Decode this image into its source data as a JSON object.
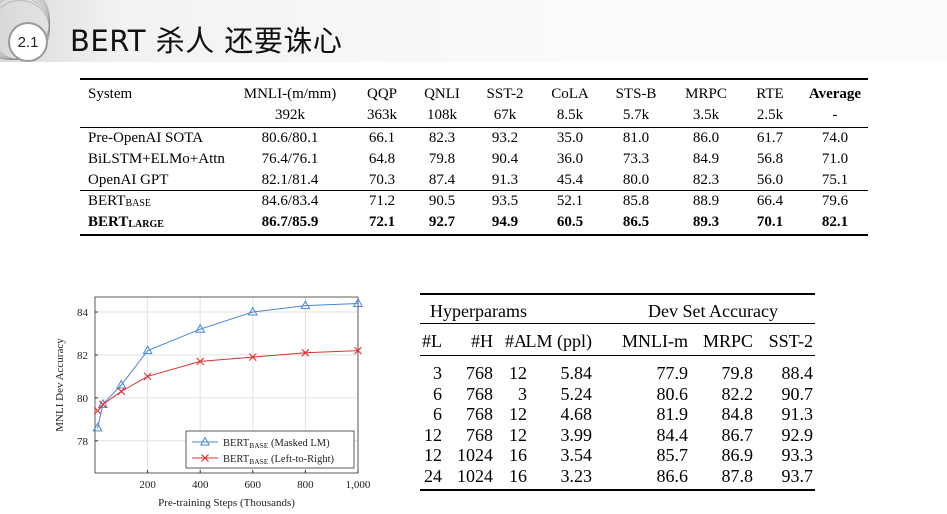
{
  "header": {
    "section_number": "2.1",
    "title": "BERT 杀人 还要诛心"
  },
  "glue_table": {
    "headers": [
      {
        "top": "System",
        "bottom": ""
      },
      {
        "top": "MNLI-(m/mm)",
        "bottom": "392k"
      },
      {
        "top": "QQP",
        "bottom": "363k"
      },
      {
        "top": "QNLI",
        "bottom": "108k"
      },
      {
        "top": "SST-2",
        "bottom": "67k"
      },
      {
        "top": "CoLA",
        "bottom": "8.5k"
      },
      {
        "top": "STS-B",
        "bottom": "5.7k"
      },
      {
        "top": "MRPC",
        "bottom": "3.5k"
      },
      {
        "top": "RTE",
        "bottom": "2.5k"
      },
      {
        "top": "Average",
        "bottom": "-"
      }
    ],
    "rows": [
      {
        "system": "Pre-OpenAI SOTA",
        "sub": "",
        "values": [
          "80.6/80.1",
          "66.1",
          "82.3",
          "93.2",
          "35.0",
          "81.0",
          "86.0",
          "61.7",
          "74.0"
        ],
        "bold": false
      },
      {
        "system": "BiLSTM+ELMo+Attn",
        "sub": "",
        "values": [
          "76.4/76.1",
          "64.8",
          "79.8",
          "90.4",
          "36.0",
          "73.3",
          "84.9",
          "56.8",
          "71.0"
        ],
        "bold": false
      },
      {
        "system": "OpenAI GPT",
        "sub": "",
        "values": [
          "82.1/81.4",
          "70.3",
          "87.4",
          "91.3",
          "45.4",
          "80.0",
          "82.3",
          "56.0",
          "75.1"
        ],
        "bold": false
      },
      {
        "system": "BERT",
        "sub": "BASE",
        "values": [
          "84.6/83.4",
          "71.2",
          "90.5",
          "93.5",
          "52.1",
          "85.8",
          "88.9",
          "66.4",
          "79.6"
        ],
        "bold": false
      },
      {
        "system": "BERT",
        "sub": "LARGE",
        "values": [
          "86.7/85.9",
          "72.1",
          "92.7",
          "94.9",
          "60.5",
          "86.5",
          "89.3",
          "70.1",
          "82.1"
        ],
        "bold": true
      }
    ]
  },
  "chart_data": {
    "type": "line",
    "xlabel": "Pre-training Steps (Thousands)",
    "ylabel": "MNLI Dev Accuracy",
    "xlim": [
      0,
      1000
    ],
    "ylim": [
      76.5,
      84.7
    ],
    "xticks": [
      200,
      400,
      600,
      800,
      1000
    ],
    "xtick_labels": [
      "200",
      "400",
      "600",
      "800",
      "1,000"
    ],
    "yticks": [
      76,
      78,
      80,
      82,
      84
    ],
    "grid": true,
    "legend_position": "bottom-right",
    "series": [
      {
        "name_main": "BERT",
        "name_sub": "BASE",
        "name_rest": " (Masked LM)",
        "color": "#4a86d8",
        "marker": "triangle",
        "x": [
          10,
          30,
          100,
          200,
          400,
          600,
          800,
          1000
        ],
        "y": [
          78.6,
          79.7,
          80.6,
          82.2,
          83.2,
          84.0,
          84.3,
          84.4
        ]
      },
      {
        "name_main": "BERT",
        "name_sub": "BASE",
        "name_rest": " (Left-to-Right)",
        "color": "#e03030",
        "marker": "x",
        "x": [
          10,
          30,
          100,
          200,
          400,
          600,
          800,
          1000
        ],
        "y": [
          79.4,
          79.7,
          80.3,
          81.0,
          81.7,
          81.9,
          82.1,
          82.2
        ]
      }
    ]
  },
  "hp_table": {
    "group_headers": [
      "Hyperparams",
      "Dev Set Accuracy"
    ],
    "columns": [
      "#L",
      "#H",
      "#A",
      "LM (ppl)",
      "MNLI-m",
      "MRPC",
      "SST-2"
    ],
    "rows": [
      [
        "3",
        "768",
        "12",
        "5.84",
        "77.9",
        "79.8",
        "88.4"
      ],
      [
        "6",
        "768",
        "3",
        "5.24",
        "80.6",
        "82.2",
        "90.7"
      ],
      [
        "6",
        "768",
        "12",
        "4.68",
        "81.9",
        "84.8",
        "91.3"
      ],
      [
        "12",
        "768",
        "12",
        "3.99",
        "84.4",
        "86.7",
        "92.9"
      ],
      [
        "12",
        "1024",
        "16",
        "3.54",
        "85.7",
        "86.9",
        "93.3"
      ],
      [
        "24",
        "1024",
        "16",
        "3.23",
        "86.6",
        "87.8",
        "93.7"
      ]
    ]
  }
}
